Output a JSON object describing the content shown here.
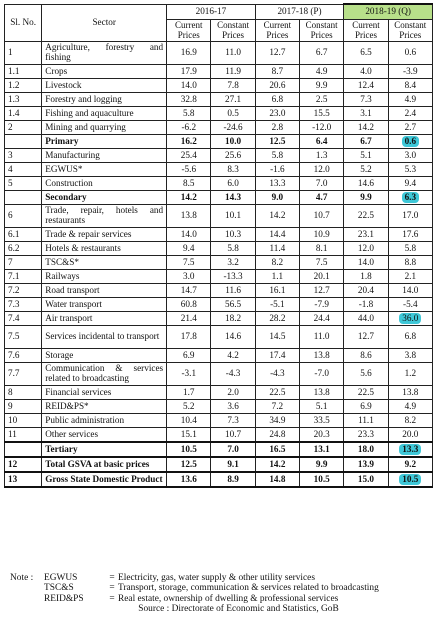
{
  "header": {
    "sl_no": "Sl. No.",
    "sector": "Sector",
    "years": [
      "2016-17",
      "2017-18 (P)",
      "2018-19 (Q)"
    ],
    "current": "Current Prices",
    "constant": "Constant Prices"
  },
  "rows": [
    {
      "sl": "1",
      "sector": "Agriculture, forestry and fishing",
      "v": [
        "16.9",
        "11.0",
        "12.7",
        "6.7",
        "6.5",
        "0.6"
      ]
    },
    {
      "sl": "1.1",
      "sector": "Crops",
      "v": [
        "17.9",
        "11.9",
        "8.7",
        "4.9",
        "4.0",
        "-3.9"
      ]
    },
    {
      "sl": "1.2",
      "sector": "Livestock",
      "v": [
        "14.0",
        "7.8",
        "20.6",
        "9.9",
        "12.4",
        "8.4"
      ]
    },
    {
      "sl": "1.3",
      "sector": "Forestry and logging",
      "v": [
        "32.8",
        "27.1",
        "6.8",
        "2.5",
        "7.3",
        "4.9"
      ]
    },
    {
      "sl": "1.4",
      "sector": "Fishing and aquaculture",
      "v": [
        "5.8",
        "0.5",
        "23.0",
        "15.5",
        "3.1",
        "2.4"
      ]
    },
    {
      "sl": "2",
      "sector": "Mining and quarrying",
      "v": [
        "-6.2",
        "-24.6",
        "2.8",
        "-12.0",
        "14.2",
        "2.7"
      ]
    },
    {
      "sl": "",
      "sector": "Primary",
      "v": [
        "16.2",
        "10.0",
        "12.5",
        "6.4",
        "6.7",
        "0.6"
      ]
    },
    {
      "sl": "3",
      "sector": "Manufacturing",
      "v": [
        "25.4",
        "25.6",
        "5.8",
        "1.3",
        "5.1",
        "3.0"
      ]
    },
    {
      "sl": "4",
      "sector": "EGWUS*",
      "v": [
        "-5.6",
        "8.3",
        "-1.6",
        "12.0",
        "5.2",
        "5.3"
      ]
    },
    {
      "sl": "5",
      "sector": "Construction",
      "v": [
        "8.5",
        "6.0",
        "13.3",
        "7.0",
        "14.6",
        "9.4"
      ]
    },
    {
      "sl": "",
      "sector": "Secondary",
      "v": [
        "14.2",
        "14.3",
        "9.0",
        "4.7",
        "9.9",
        "6.3"
      ]
    },
    {
      "sl": "6",
      "sector": "Trade, repair, hotels and restaurants",
      "v": [
        "13.8",
        "10.1",
        "14.2",
        "10.7",
        "22.5",
        "17.0"
      ]
    },
    {
      "sl": "6.1",
      "sector": "Trade & repair services",
      "v": [
        "14.0",
        "10.3",
        "14.4",
        "10.9",
        "23.1",
        "17.6"
      ]
    },
    {
      "sl": "6.2",
      "sector": "Hotels & restaurants",
      "v": [
        "9.4",
        "5.8",
        "11.4",
        "8.1",
        "12.0",
        "5.8"
      ]
    },
    {
      "sl": "7",
      "sector": "TSC&S*",
      "v": [
        "7.5",
        "3.2",
        "8.2",
        "7.5",
        "14.0",
        "8.8"
      ]
    },
    {
      "sl": "7.1",
      "sector": "Railways",
      "v": [
        "3.0",
        "-13.3",
        "1.1",
        "20.1",
        "1.8",
        "2.1"
      ]
    },
    {
      "sl": "7.2",
      "sector": "Road transport",
      "v": [
        "14.7",
        "11.6",
        "16.1",
        "12.7",
        "20.4",
        "14.0"
      ]
    },
    {
      "sl": "7.3",
      "sector": "Water transport",
      "v": [
        "60.8",
        "56.5",
        "-5.1",
        "-7.9",
        "-1.8",
        "-5.4"
      ]
    },
    {
      "sl": "7.4",
      "sector": "Air transport",
      "v": [
        "21.4",
        "18.2",
        "28.2",
        "24.4",
        "44.0",
        "36.0"
      ]
    },
    {
      "sl": "7.5",
      "sector": "Services incidental to transport",
      "v": [
        "17.8",
        "14.6",
        "14.5",
        "11.0",
        "12.7",
        "6.8"
      ]
    },
    {
      "sl": "7.6",
      "sector": "Storage",
      "v": [
        "6.9",
        "4.2",
        "17.4",
        "13.8",
        "8.6",
        "3.8"
      ]
    },
    {
      "sl": "7.7",
      "sector": "Communication & services related to broadcasting",
      "v": [
        "-3.1",
        "-4.3",
        "-4.3",
        "-7.0",
        "5.6",
        "1.2"
      ]
    },
    {
      "sl": "8",
      "sector": "Financial services",
      "v": [
        "1.7",
        "2.0",
        "22.5",
        "13.8",
        "22.5",
        "13.8"
      ]
    },
    {
      "sl": "9",
      "sector": "REID&PS*",
      "v": [
        "5.2",
        "3.6",
        "7.2",
        "5.1",
        "6.9",
        "4.9"
      ]
    },
    {
      "sl": "10",
      "sector": "Public administration",
      "v": [
        "10.4",
        "7.3",
        "34.9",
        "33.5",
        "11.1",
        "8.2"
      ]
    },
    {
      "sl": "11",
      "sector": "Other services",
      "v": [
        "15.1",
        "10.7",
        "24.8",
        "20.3",
        "23.3",
        "20.0"
      ]
    },
    {
      "sl": "",
      "sector": "Tertiary",
      "v": [
        "10.5",
        "7.0",
        "16.5",
        "13.1",
        "18.0",
        "13.3"
      ]
    },
    {
      "sl": "12",
      "sector": "Total GSVA at basic prices",
      "v": [
        "12.5",
        "9.1",
        "14.2",
        "9.9",
        "13.9",
        "9.2"
      ]
    },
    {
      "sl": "13",
      "sector": "Gross State Domestic Product",
      "v": [
        "13.6",
        "8.9",
        "14.8",
        "10.5",
        "15.0",
        "10.5"
      ]
    }
  ],
  "notes": {
    "lead": "Note :",
    "items": [
      {
        "abbr": "EGWUS",
        "eq": "=",
        "text": "Electricity, gas, water supply & other utility services"
      },
      {
        "abbr": "TSC&S",
        "eq": "=",
        "text": "Transport, storage, communication & services related to broadcasting"
      },
      {
        "abbr": "REID&PS",
        "eq": "=",
        "text": "Real estate, ownership of dwelling & professional services"
      }
    ],
    "source": "Source : Directorate of Economic and Statistics, GoB"
  },
  "colors": {
    "highlight_header": "#b8e08a",
    "highlight_value": "#3ec8d8"
  },
  "highlighted_values": [
    "0.6",
    "6.3",
    "36.0",
    "13.3",
    "10.5"
  ]
}
